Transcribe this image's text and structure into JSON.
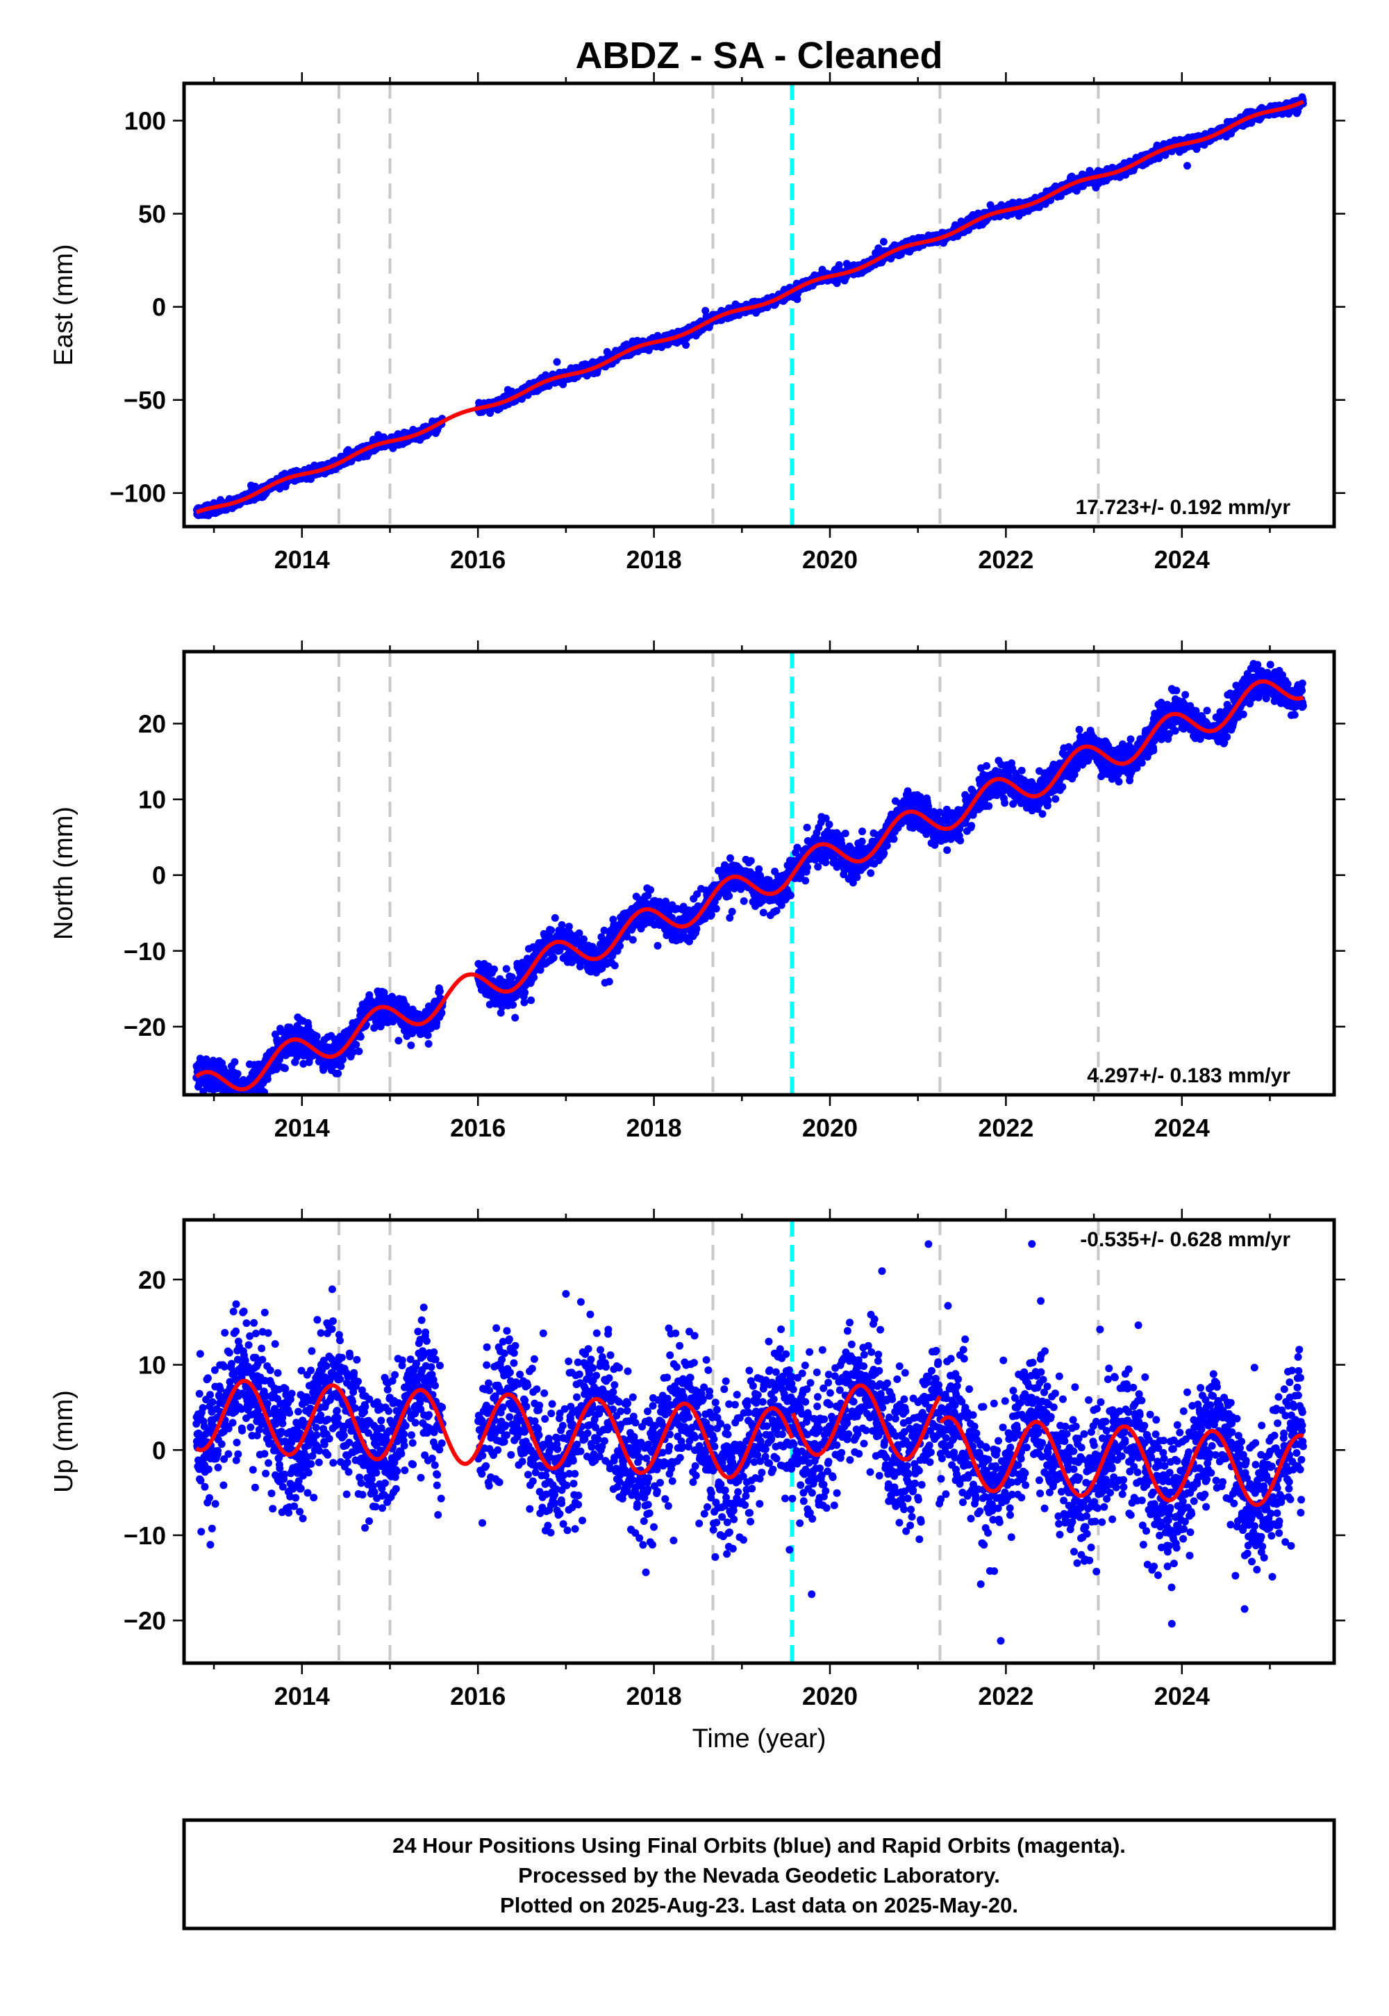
{
  "chart_data": {
    "title": "ABDZ  - SA - Cleaned",
    "xlabel": "Time (year)",
    "xlim": [
      2012.66,
      2025.73
    ],
    "xticks": [
      2014,
      2016,
      2018,
      2020,
      2022,
      2024
    ],
    "xtick_labels": [
      "2014",
      "2016",
      "2018",
      "2020",
      "2022",
      "2024"
    ],
    "grey_breaks": [
      2014.42,
      2015.0,
      2018.67,
      2021.25,
      2023.05
    ],
    "cyan_break": 2019.57,
    "colors": {
      "points": "#0000ff",
      "model": "#ff0000",
      "grey_break": "#c8c8c8",
      "cyan_break": "#00ffff"
    },
    "panels": [
      {
        "type": "scatter",
        "name": "east",
        "ylabel": "East (mm)",
        "ylim": [
          -118,
          120
        ],
        "yticks": [
          -100,
          -50,
          0,
          50,
          100
        ],
        "ytick_labels": [
          "−100",
          "−50",
          "0",
          "50",
          "100"
        ],
        "rate": "17.723+/- 0.192 mm/yr",
        "rate_position": "bottom-right",
        "model": {
          "trend": 17.723,
          "ref": 2019.55,
          "intercept": 8.0,
          "annual": 1.3,
          "phase": 0.55
        },
        "noise": 1.4,
        "gaps": [
          [
            2015.6,
            2016.0
          ]
        ],
        "offsets": []
      },
      {
        "type": "scatter",
        "name": "north",
        "ylabel": "North (mm)",
        "ylim": [
          -29,
          29.5
        ],
        "yticks": [
          -20,
          -10,
          0,
          10,
          20
        ],
        "ytick_labels": [
          "−20",
          "−10",
          "0",
          "10",
          "20"
        ],
        "rate": "4.297+/- 0.183 mm/yr",
        "rate_position": "bottom-right",
        "model": {
          "trend": 4.297,
          "ref": 2019.55,
          "intercept": 0.5,
          "annual": 2.1,
          "phase": 0.62
        },
        "noise": 1.1,
        "gaps": [
          [
            2015.6,
            2016.0
          ]
        ],
        "offsets": []
      },
      {
        "type": "scatter",
        "name": "up",
        "ylabel": "Up (mm)",
        "ylim": [
          -25,
          27
        ],
        "yticks": [
          -20,
          -10,
          0,
          10,
          20
        ],
        "ytick_labels": [
          "−20",
          "−10",
          "0",
          "10",
          "20"
        ],
        "rate": "-0.535+/- 0.628 mm/yr",
        "rate_position": "top-right",
        "model": {
          "trend": -0.535,
          "ref": 2019.55,
          "intercept": 0.6,
          "annual": 4.2,
          "phase": 0.1
        },
        "noise": 4.0,
        "gaps": [
          [
            2015.6,
            2016.0
          ]
        ],
        "offsets": [
          [
            2019.57,
            3.2
          ],
          [
            2021.25,
            -3.2
          ]
        ]
      }
    ]
  },
  "footer": {
    "line1": "24 Hour Positions Using Final Orbits (blue) and Rapid Orbits (magenta).",
    "line2": "Processed by the Nevada Geodetic Laboratory.",
    "line3": "Plotted on 2025-Aug-23. Last data on 2025-May-20."
  }
}
